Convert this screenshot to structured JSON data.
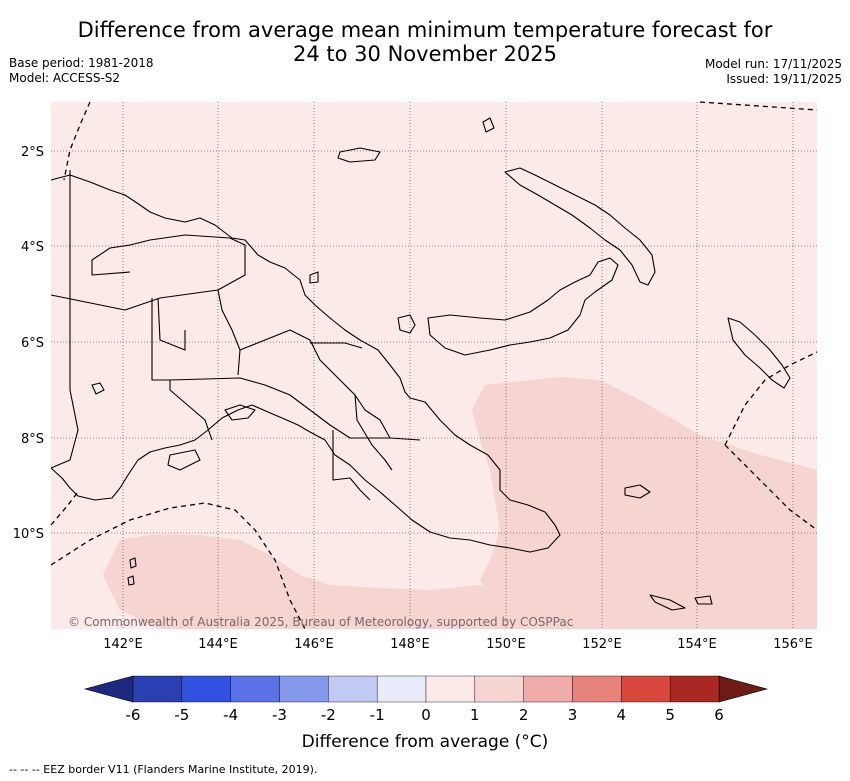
{
  "title": {
    "line1": "Difference from average mean minimum temperature forecast for",
    "line2": "24 to 30 November 2025"
  },
  "meta": {
    "base_period": "Base period: 1981-2018",
    "model": "Model: ACCESS-S2",
    "model_run": "Model run: 17/11/2025",
    "issued": "Issued: 19/11/2025"
  },
  "map": {
    "lat_labels": [
      "2°S",
      "4°S",
      "6°S",
      "8°S",
      "10°S"
    ],
    "lon_labels": [
      "142°E",
      "144°E",
      "146°E",
      "148°E",
      "150°E",
      "152°E",
      "154°E",
      "156°E"
    ],
    "copyright": "© Commonwealth of Australia 2025, Bureau of Meteorology, supported by COSPPac",
    "background_color": "#fbeae8",
    "anomaly_color": "#f5d4d2"
  },
  "colorbar": {
    "ticks": [
      "-6",
      "-5",
      "-4",
      "-3",
      "-2",
      "-1",
      "0",
      "1",
      "2",
      "3",
      "4",
      "5",
      "6"
    ],
    "colors": [
      "#2a3fb0",
      "#3152e0",
      "#5b72e6",
      "#8599ec",
      "#c2c9f3",
      "#e8ebf8",
      "#fbeae8",
      "#f5d4d2",
      "#efaba7",
      "#e5837b",
      "#d9483d",
      "#a92821"
    ],
    "low_extend_color": "#1b2a80",
    "high_extend_color": "#6e1a16",
    "label": "Difference from average (°C)"
  },
  "footnote": "--  --  -- EEZ border V11 (Flanders Marine Institute, 2019)."
}
